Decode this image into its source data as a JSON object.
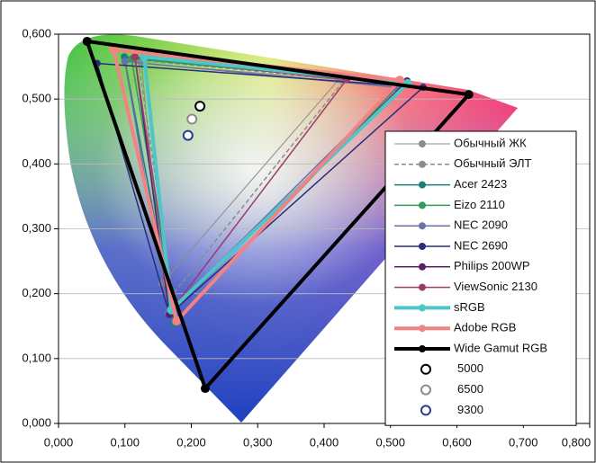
{
  "chart_data": {
    "type": "line",
    "xlim": [
      0,
      0.8
    ],
    "ylim": [
      0,
      0.6
    ],
    "xticks": [
      {
        "value": 0,
        "label": "0,000"
      },
      {
        "value": 0.1,
        "label": "0,100"
      },
      {
        "value": 0.2,
        "label": "0,200"
      },
      {
        "value": 0.3,
        "label": "0,300"
      },
      {
        "value": 0.4,
        "label": "0,400"
      },
      {
        "value": 0.5,
        "label": "0,500"
      },
      {
        "value": 0.6,
        "label": "0,600"
      },
      {
        "value": 0.7,
        "label": "0,700"
      },
      {
        "value": 0.8,
        "label": "0,800"
      }
    ],
    "yticks": [
      {
        "value": 0,
        "label": "0,000"
      },
      {
        "value": 0.1,
        "label": "0,100"
      },
      {
        "value": 0.2,
        "label": "0,200"
      },
      {
        "value": 0.3,
        "label": "0,300"
      },
      {
        "value": 0.4,
        "label": "0,400"
      },
      {
        "value": 0.5,
        "label": "0,500"
      },
      {
        "value": 0.6,
        "label": "0,600"
      }
    ],
    "grid": true,
    "legend": "right",
    "series": [
      {
        "name": "Обычный ЖК",
        "color": "#8c8c8c",
        "width": 1,
        "x": [
          0.422,
          0.125,
          0.156,
          0.422
        ],
        "values": [
          0.53,
          0.555,
          0.216,
          0.53
        ]
      },
      {
        "name": "Обычный ЭЛТ",
        "color": "#8c8c8c",
        "width": 1.5,
        "dash": true,
        "x": [
          0.431,
          0.12,
          0.172,
          0.431
        ],
        "values": [
          0.53,
          0.56,
          0.199,
          0.53
        ]
      },
      {
        "name": "Acer 2423",
        "color": "#1b7f78",
        "width": 1.5,
        "x": [
          0.513,
          0.099,
          0.174,
          0.513
        ],
        "values": [
          0.525,
          0.565,
          0.154,
          0.525
        ]
      },
      {
        "name": "Eizo 2110",
        "color": "#2f9b5c",
        "width": 1.5,
        "x": [
          0.515,
          0.11,
          0.176,
          0.515
        ],
        "values": [
          0.524,
          0.562,
          0.156,
          0.524
        ]
      },
      {
        "name": "NEC 2090",
        "color": "#6a70a8",
        "width": 1.5,
        "x": [
          0.508,
          0.1,
          0.165,
          0.508
        ],
        "values": [
          0.518,
          0.558,
          0.17,
          0.518
        ]
      },
      {
        "name": "NEC 2690",
        "color": "#272d7c",
        "width": 1.5,
        "x": [
          0.549,
          0.058,
          0.167,
          0.549
        ],
        "values": [
          0.518,
          0.555,
          0.168,
          0.518
        ]
      },
      {
        "name": "Philips 200WP",
        "color": "#5a1f66",
        "width": 1.5,
        "x": [
          0.525,
          0.115,
          0.167,
          0.525
        ],
        "values": [
          0.528,
          0.565,
          0.168,
          0.528
        ]
      },
      {
        "name": "ViewSonic 2130",
        "color": "#9b3b6b",
        "width": 1.5,
        "x": [
          0.434,
          0.115,
          0.172,
          0.434
        ],
        "values": [
          0.53,
          0.565,
          0.177,
          0.53
        ]
      },
      {
        "name": "sRGB",
        "color": "#4cc6c6",
        "width": 4,
        "x": [
          0.526,
          0.129,
          0.17,
          0.526
        ],
        "values": [
          0.524,
          0.565,
          0.175,
          0.524
        ]
      },
      {
        "name": "Adobe RGB",
        "color": "#f28383",
        "width": 4,
        "x": [
          0.514,
          0.083,
          0.178,
          0.514
        ],
        "values": [
          0.529,
          0.576,
          0.158,
          0.529
        ]
      },
      {
        "name": "Wide Gamut RGB",
        "color": "#000000",
        "width": 4,
        "x": [
          0.618,
          0.043,
          0.221,
          0.618
        ],
        "values": [
          0.507,
          0.589,
          0.054,
          0.507
        ]
      },
      {
        "name": "5000",
        "color": "#000000",
        "marker": "open",
        "x": [
          0.213
        ],
        "values": [
          0.489
        ]
      },
      {
        "name": "6500",
        "color": "#8c8c8c",
        "marker": "open",
        "x": [
          0.201
        ],
        "values": [
          0.469
        ]
      },
      {
        "name": "9300",
        "color": "#2a3a9a",
        "marker": "open",
        "x": [
          0.195
        ],
        "values": [
          0.444
        ]
      }
    ]
  }
}
